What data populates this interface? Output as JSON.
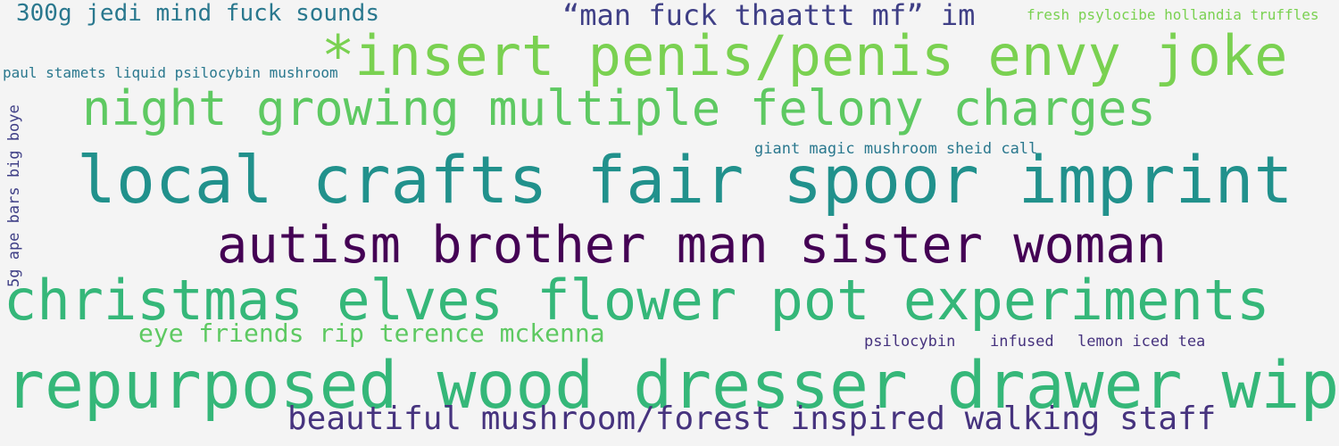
{
  "background": "#f4f4f4",
  "palette": {
    "teal": "#2a788e",
    "dark_purple": "#440154",
    "indigo": "#3f3f86",
    "purple": "#46337e",
    "green": "#35b779",
    "light_green": "#7ad151",
    "mid_green": "#5ec962",
    "cyan": "#21918c"
  },
  "words": [
    {
      "text": "300g jedi mind fuck sounds",
      "color": "#2a788e"
    },
    {
      "text": "“man fuck thaattt mf” im",
      "color": "#3f3f86"
    },
    {
      "text": "fresh psylocibe hollandia truffles",
      "color": "#7ad151"
    },
    {
      "text": "*insert penis/penis envy joke",
      "color": "#7ad151"
    },
    {
      "text": "paul stamets liquid psilocybin mushroom",
      "color": "#2a788e"
    },
    {
      "text": "night growing multiple felony charges",
      "color": "#5ec962"
    },
    {
      "text": "5g ape bars big boye",
      "color": "#3f3f86"
    },
    {
      "text": "giant magic mushroom sheid call",
      "color": "#2a788e"
    },
    {
      "text": "local crafts fair spoor imprint",
      "color": "#21918c"
    },
    {
      "text": "autism brother man sister woman",
      "color": "#440154"
    },
    {
      "text": "christmas elves flower pot experiments",
      "color": "#35b779"
    },
    {
      "text": "eye friends rip terence mckenna",
      "color": "#5ec962"
    },
    {
      "text": "psilocybin",
      "color": "#46337e"
    },
    {
      "text": "infused",
      "color": "#46337e"
    },
    {
      "text": "lemon iced tea",
      "color": "#46337e"
    },
    {
      "text": "repurposed wood dresser drawer wip",
      "color": "#35b779"
    },
    {
      "text": "beautiful mushroom/forest inspired walking staff",
      "color": "#46337e"
    }
  ]
}
